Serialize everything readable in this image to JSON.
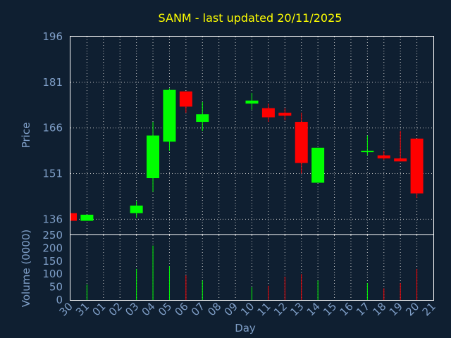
{
  "chart_data": {
    "type": "candlestick",
    "title": "SANM - last updated 20/11/2025",
    "xlabel": "Day",
    "price_panel": {
      "ylabel": "Price",
      "ylim": [
        131,
        196
      ],
      "yticks": [
        136,
        151,
        166,
        181,
        196
      ]
    },
    "volume_panel": {
      "ylabel": "Volume (0000)",
      "ylim": [
        0,
        250
      ],
      "yticks": [
        0,
        50,
        100,
        150,
        200,
        250
      ]
    },
    "x_ticks": [
      "30",
      "31",
      "01",
      "02",
      "03",
      "04",
      "05",
      "06",
      "07",
      "08",
      "09",
      "10",
      "11",
      "12",
      "13",
      "14",
      "15",
      "16",
      "17",
      "18",
      "19",
      "20",
      "21"
    ],
    "colors": {
      "up": "#00ff00",
      "down": "#ff0000",
      "background": "#0f1f31",
      "title": "#ffff00",
      "text": "#7f9fc8"
    },
    "candles": [
      {
        "day": "30",
        "open": 138,
        "close": 135.5,
        "high": 138,
        "low": 135.5,
        "volume": 0
      },
      {
        "day": "31",
        "open": 135.5,
        "close": 137.5,
        "high": 137.5,
        "low": 135.5,
        "volume": 60
      },
      {
        "day": "03",
        "open": 138,
        "close": 140.5,
        "high": 142,
        "low": 136.5,
        "volume": 120
      },
      {
        "day": "04",
        "open": 149.5,
        "close": 163.5,
        "high": 168,
        "low": 145,
        "volume": 210
      },
      {
        "day": "05",
        "open": 161.5,
        "close": 178.5,
        "high": 179,
        "low": 158.5,
        "volume": 130
      },
      {
        "day": "06",
        "open": 178,
        "close": 173,
        "high": 178,
        "low": 171,
        "volume": 95
      },
      {
        "day": "07",
        "open": 168,
        "close": 170.5,
        "high": 174.5,
        "low": 165,
        "volume": 75
      },
      {
        "day": "10",
        "open": 174,
        "close": 175,
        "high": 177.5,
        "low": 172,
        "volume": 50
      },
      {
        "day": "11",
        "open": 172.5,
        "close": 169.5,
        "high": 174,
        "low": 168,
        "volume": 55
      },
      {
        "day": "12",
        "open": 171,
        "close": 170,
        "high": 172.5,
        "low": 168.5,
        "volume": 90
      },
      {
        "day": "13",
        "open": 168,
        "close": 154.5,
        "high": 171,
        "low": 151,
        "volume": 100
      },
      {
        "day": "14",
        "open": 148,
        "close": 159.5,
        "high": 159.5,
        "low": 148,
        "volume": 75
      },
      {
        "day": "17",
        "open": 158.5,
        "close": 158.5,
        "high": 163.5,
        "low": 157,
        "volume": 65
      },
      {
        "day": "18",
        "open": 157,
        "close": 156,
        "high": 158.5,
        "low": 155.5,
        "volume": 45
      },
      {
        "day": "19",
        "open": 156,
        "close": 155,
        "high": 165,
        "low": 155,
        "volume": 65
      },
      {
        "day": "20",
        "open": 162.5,
        "close": 144.5,
        "high": 162.5,
        "low": 143,
        "volume": 120
      }
    ]
  }
}
